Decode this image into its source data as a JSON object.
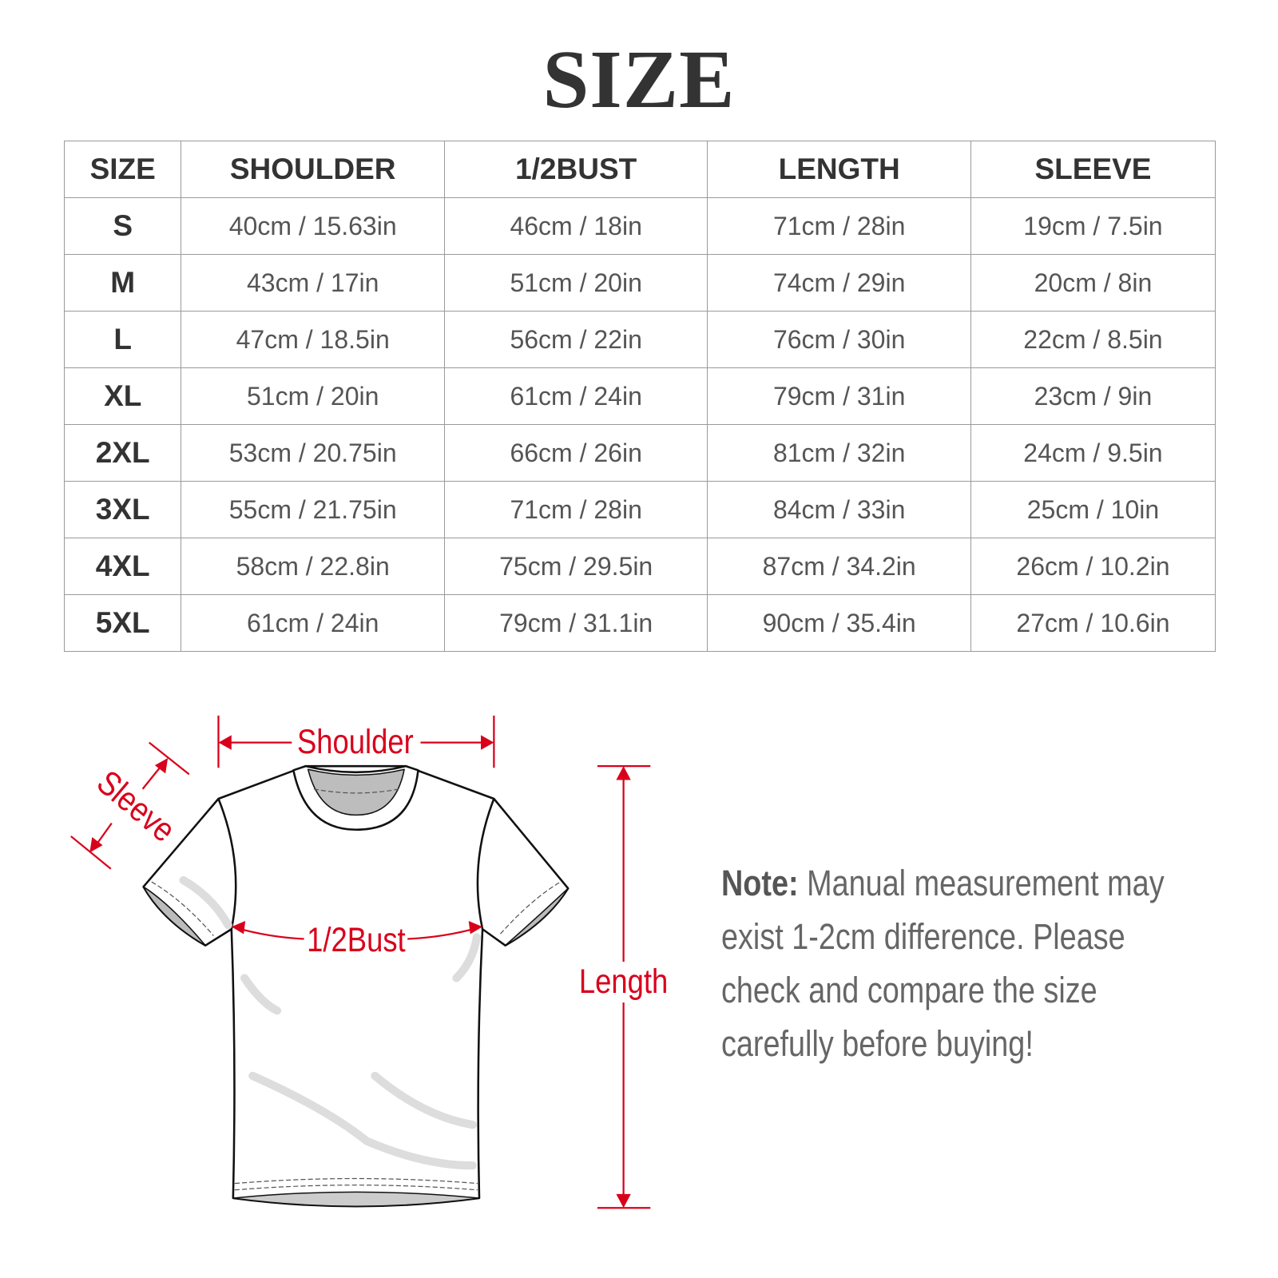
{
  "title": "SIZE",
  "table": {
    "headers": [
      "SIZE",
      "SHOULDER",
      "1/2BUST",
      "LENGTH",
      "SLEEVE"
    ],
    "rows": [
      [
        "S",
        "40cm / 15.63in",
        "46cm / 18in",
        "71cm / 28in",
        "19cm / 7.5in"
      ],
      [
        "M",
        "43cm / 17in",
        "51cm / 20in",
        "74cm / 29in",
        "20cm / 8in"
      ],
      [
        "L",
        "47cm / 18.5in",
        "56cm / 22in",
        "76cm / 30in",
        "22cm / 8.5in"
      ],
      [
        "XL",
        "51cm / 20in",
        "61cm / 24in",
        "79cm / 31in",
        "23cm / 9in"
      ],
      [
        "2XL",
        "53cm / 20.75in",
        "66cm / 26in",
        "81cm / 32in",
        "24cm / 9.5in"
      ],
      [
        "3XL",
        "55cm / 21.75in",
        "71cm / 28in",
        "84cm / 33in",
        "25cm / 10in"
      ],
      [
        "4XL",
        "58cm / 22.8in",
        "75cm / 29.5in",
        "87cm / 34.2in",
        "26cm / 10.2in"
      ],
      [
        "5XL",
        "61cm / 24in",
        "79cm / 31.1in",
        "90cm / 35.4in",
        "27cm / 10.6in"
      ]
    ]
  },
  "diagram": {
    "shoulder_label": "Shoulder",
    "sleeve_label": "Sleeve",
    "bust_label": "1/2Bust",
    "length_label": "Length",
    "accent_color": "#d9001b"
  },
  "note": {
    "label": "Note:",
    "text": "Manual measurement may exist 1-2cm difference. Please check and compare the size carefully before buying!"
  }
}
